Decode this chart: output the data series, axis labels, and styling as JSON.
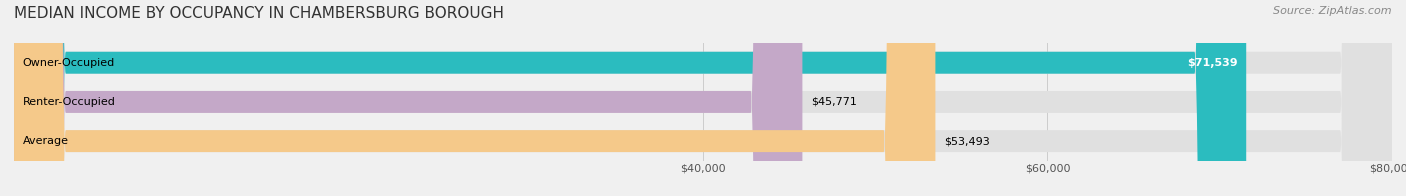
{
  "title": "MEDIAN INCOME BY OCCUPANCY IN CHAMBERSBURG BOROUGH",
  "source": "Source: ZipAtlas.com",
  "categories": [
    "Owner-Occupied",
    "Renter-Occupied",
    "Average"
  ],
  "values": [
    71539,
    45771,
    53493
  ],
  "bar_colors": [
    "#2bbcbf",
    "#c4a8c8",
    "#f5c98a"
  ],
  "bar_edge_colors": [
    "#2bbcbf",
    "#c4a8c8",
    "#f5c98a"
  ],
  "label_values": [
    "$71,539",
    "$45,771",
    "$53,493"
  ],
  "xlim": [
    0,
    80000
  ],
  "xticks": [
    40000,
    60000,
    80000
  ],
  "xticklabels": [
    "$40,000",
    "$60,000",
    "$80,000"
  ],
  "title_fontsize": 11,
  "source_fontsize": 8,
  "bar_height": 0.55,
  "background_color": "#f0f0f0",
  "bar_bg_color": "#e8e8e8"
}
